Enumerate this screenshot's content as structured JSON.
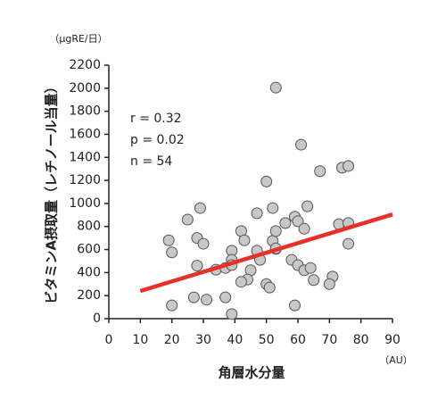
{
  "chart_data": {
    "type": "scatter",
    "y_label": "ビタミンA摂取量（レチノール当量）",
    "y_unit": "（μgRE/日）",
    "x_label": "角層水分量",
    "x_unit": "（AU）",
    "annotations": [
      "r = 0.32",
      "p = 0.02",
      "n = 54"
    ],
    "xlim": [
      0,
      90
    ],
    "ylim": [
      0,
      2200
    ],
    "xticks": [
      0,
      10,
      20,
      30,
      40,
      50,
      60,
      70,
      80,
      90
    ],
    "yticks": [
      0,
      200,
      400,
      600,
      800,
      1000,
      1200,
      1400,
      1600,
      1800,
      2000,
      2200
    ],
    "series": [
      {
        "color": "#c8c8c8",
        "x": [
          19,
          20,
          20,
          25,
          29,
          28,
          30,
          28,
          27,
          31,
          34,
          37,
          37,
          39,
          39,
          39,
          39,
          42,
          43,
          45,
          44,
          42,
          47,
          47,
          50,
          52,
          50,
          51,
          52,
          53,
          53,
          53,
          53,
          56,
          59,
          60,
          61,
          63,
          62,
          58,
          60,
          62,
          64,
          65,
          59,
          67,
          74,
          76,
          73,
          76,
          76,
          71,
          70,
          48
        ],
        "values": [
          680,
          575,
          115,
          860,
          960,
          700,
          650,
          460,
          185,
          165,
          425,
          440,
          185,
          590,
          510,
          465,
          40,
          760,
          680,
          420,
          340,
          320,
          915,
          590,
          1190,
          960,
          300,
          270,
          675,
          760,
          605,
          610,
          2005,
          830,
          885,
          845,
          1510,
          975,
          780,
          510,
          465,
          420,
          440,
          335,
          115,
          1280,
          1310,
          1325,
          820,
          830,
          650,
          365,
          300,
          510
        ]
      },
      {
        "type": "line",
        "color": "#e8302a",
        "x": [
          10,
          90
        ],
        "values": [
          240,
          905
        ]
      }
    ]
  }
}
